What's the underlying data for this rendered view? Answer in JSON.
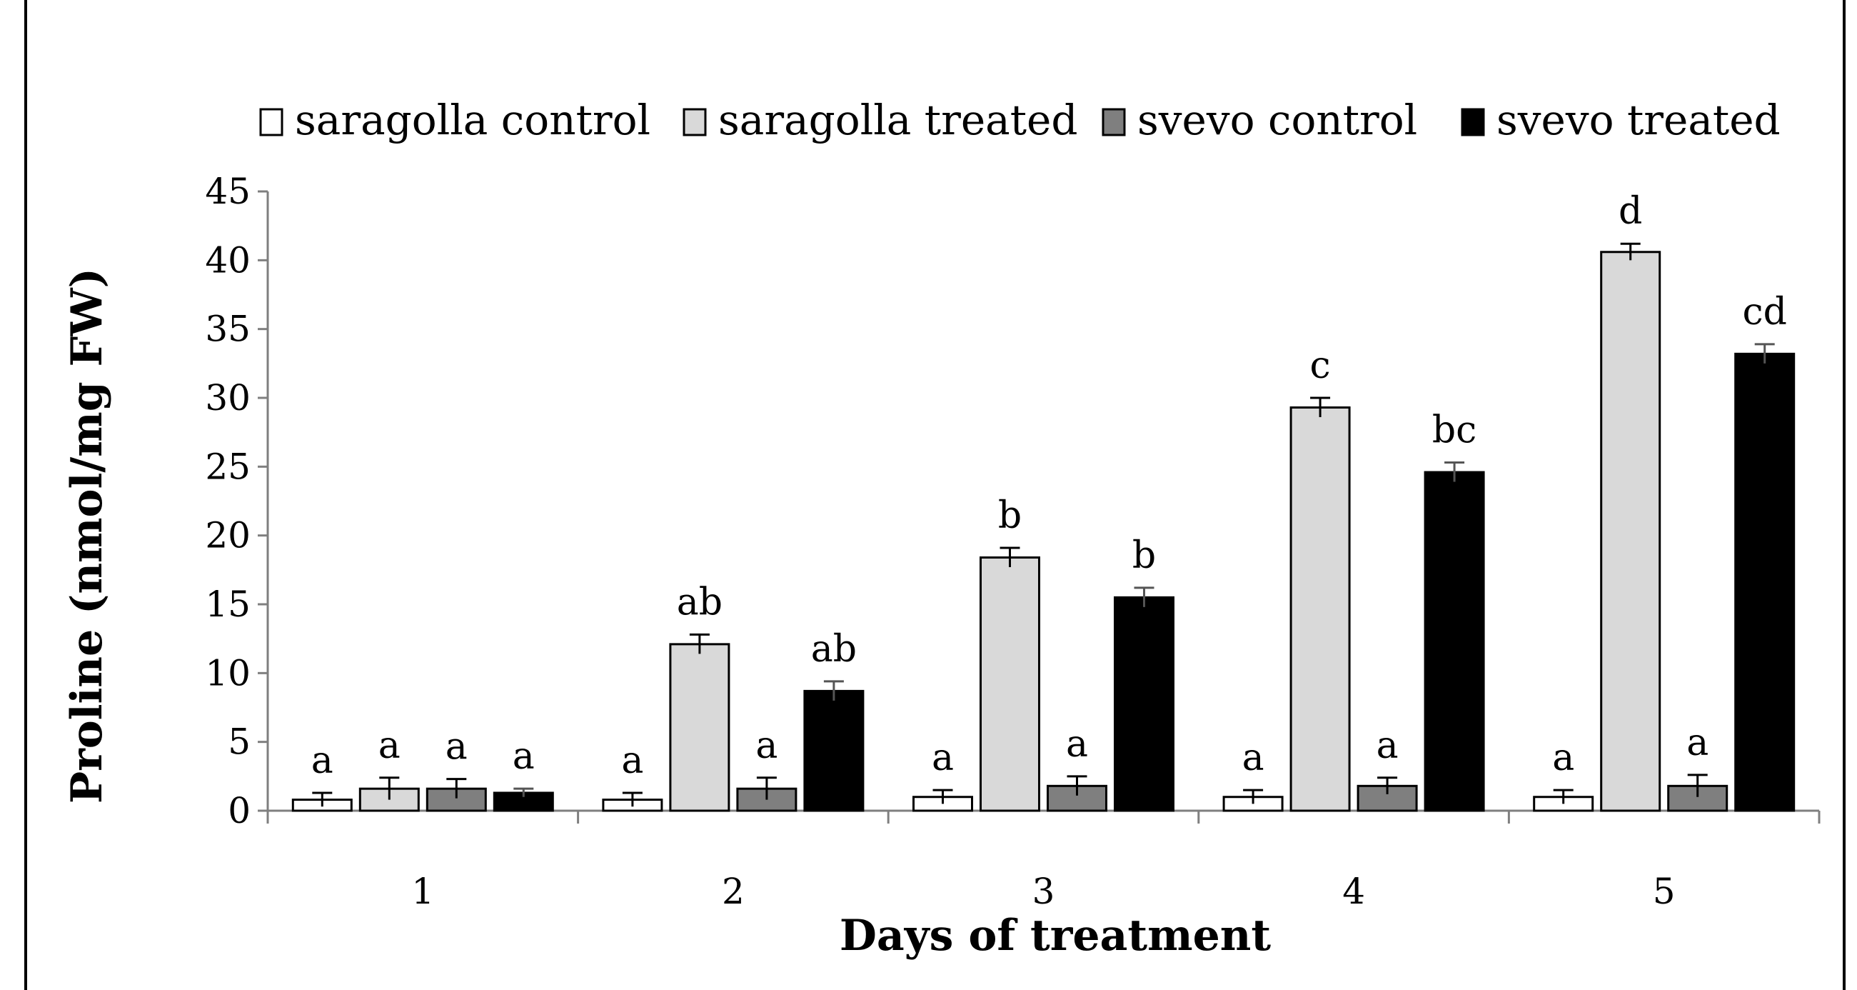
{
  "chart_data": {
    "type": "bar",
    "xlabel": "Days of treatment",
    "ylabel": "Proline (nmol/mg FW)",
    "ylim": [
      0,
      45
    ],
    "yticks": [
      "0",
      "5",
      "10",
      "15",
      "20",
      "25",
      "30",
      "35",
      "40",
      "45"
    ],
    "categories": [
      "1",
      "2",
      "3",
      "4",
      "5"
    ],
    "legend_position": "top",
    "series": [
      {
        "name": "saragolla control",
        "fill": "#ffffff",
        "stroke": "#000000",
        "values": [
          0.8,
          0.8,
          1.0,
          1.0,
          1.0
        ],
        "errors": [
          0.5,
          0.5,
          0.5,
          0.5,
          0.5
        ],
        "labels": [
          "a",
          "a",
          "a",
          "a",
          "a"
        ]
      },
      {
        "name": "saragolla treated",
        "fill": "#d9d9d9",
        "stroke": "#000000",
        "values": [
          1.6,
          12.1,
          18.4,
          29.3,
          40.6
        ],
        "errors": [
          0.8,
          0.7,
          0.7,
          0.7,
          0.6
        ],
        "labels": [
          "a",
          "ab",
          "b",
          "c",
          "d"
        ]
      },
      {
        "name": "svevo control",
        "fill": "#7f7f7f",
        "stroke": "#000000",
        "values": [
          1.6,
          1.6,
          1.8,
          1.8,
          1.8
        ],
        "errors": [
          0.7,
          0.8,
          0.7,
          0.6,
          0.8
        ],
        "labels": [
          "a",
          "a",
          "a",
          "a",
          "a"
        ]
      },
      {
        "name": "svevo treated",
        "fill": "#000000",
        "stroke": "#000000",
        "values": [
          1.3,
          8.7,
          15.5,
          24.6,
          33.2
        ],
        "errors": [
          0.3,
          0.7,
          0.7,
          0.7,
          0.7
        ],
        "labels": [
          "a",
          "ab",
          "b",
          "bc",
          "cd"
        ]
      }
    ]
  }
}
